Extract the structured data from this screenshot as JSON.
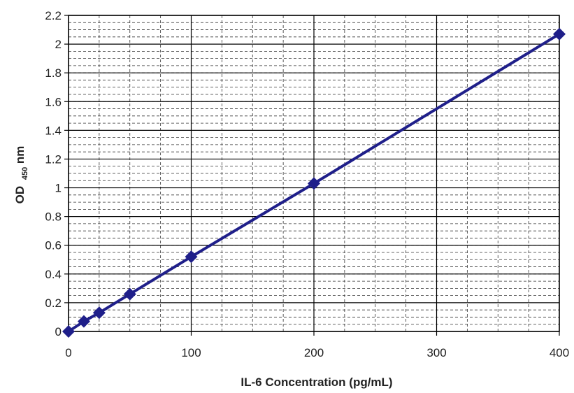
{
  "chart_data": {
    "type": "line",
    "title": "",
    "xlabel": "IL-6 Concentration (pg/mL)",
    "ylabel": {
      "main": "OD",
      "subscript": "450",
      "unit": "nm"
    },
    "xlim": [
      0,
      400
    ],
    "ylim": [
      0,
      2.2
    ],
    "x_ticks": [
      "0",
      "100",
      "200",
      "300",
      "400"
    ],
    "y_ticks": [
      "0",
      "0.2",
      "0.4",
      "0.6",
      "0.8",
      "1",
      "1.2",
      "1.4",
      "1.6",
      "1.8",
      "2",
      "2.2"
    ],
    "x_minor_grid_step": 25,
    "y_minor_grid_step": 0.05,
    "grid": true,
    "legend": "none",
    "marker": "diamond",
    "series": [
      {
        "color": "#1f1f8a",
        "x": [
          0,
          12.5,
          25,
          50,
          100,
          200,
          400
        ],
        "y": [
          0.0,
          0.07,
          0.13,
          0.26,
          0.52,
          1.03,
          2.07
        ]
      }
    ]
  }
}
